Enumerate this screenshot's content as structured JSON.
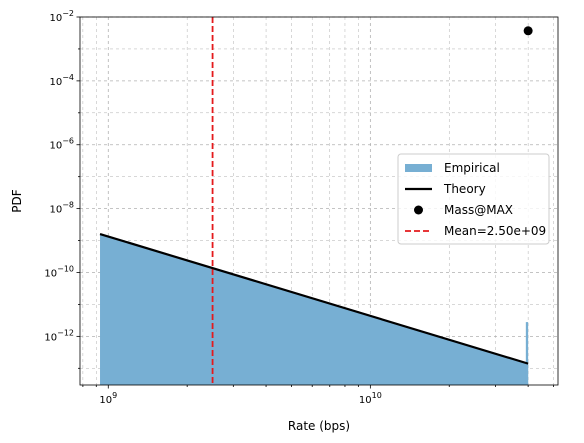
{
  "chart_data": {
    "type": "histogram-line",
    "xlabel": "Rate (bps)",
    "ylabel": "PDF",
    "x_scale": "log",
    "y_scale": "log",
    "xlim": [
      780000000,
      52000000000
    ],
    "ylim": [
      3e-14,
      0.01
    ],
    "grid": true,
    "legend_position": "center-right",
    "x_ticks": [
      {
        "value": 1000000000,
        "base": "10",
        "exp": "9"
      },
      {
        "value": 10000000000,
        "base": "10",
        "exp": "10"
      }
    ],
    "y_ticks": [
      {
        "value": 1e-12,
        "base": "10",
        "exp": "−12"
      },
      {
        "value": 1e-10,
        "base": "10",
        "exp": "−10"
      },
      {
        "value": 1e-08,
        "base": "10",
        "exp": "−8"
      },
      {
        "value": 1e-06,
        "base": "10",
        "exp": "−6"
      },
      {
        "value": 0.0001,
        "base": "10",
        "exp": "−4"
      },
      {
        "value": 0.01,
        "base": "10",
        "exp": "−2"
      }
    ],
    "series": [
      {
        "name": "Empirical",
        "kind": "histogram",
        "color": "#77afd3",
        "x_start": 930000000,
        "x_end": 40000000000,
        "y_start": 1.6e-09,
        "y_end": 1.4e-13,
        "spike": {
          "x_start": 39200000000,
          "x_end": 40000000000,
          "y": 2.8e-12
        }
      },
      {
        "name": "Theory",
        "kind": "line",
        "color": "#000000",
        "x": [
          930000000,
          40000000000
        ],
        "y": [
          1.6e-09,
          1.4e-13
        ]
      },
      {
        "name": "Mass@MAX",
        "kind": "point",
        "color": "#000000",
        "x": 40000000000,
        "y": 0.0037
      },
      {
        "name": "Mean=2.50e+09",
        "kind": "vline",
        "color": "#e41a1c",
        "x": 2500000000
      }
    ]
  }
}
